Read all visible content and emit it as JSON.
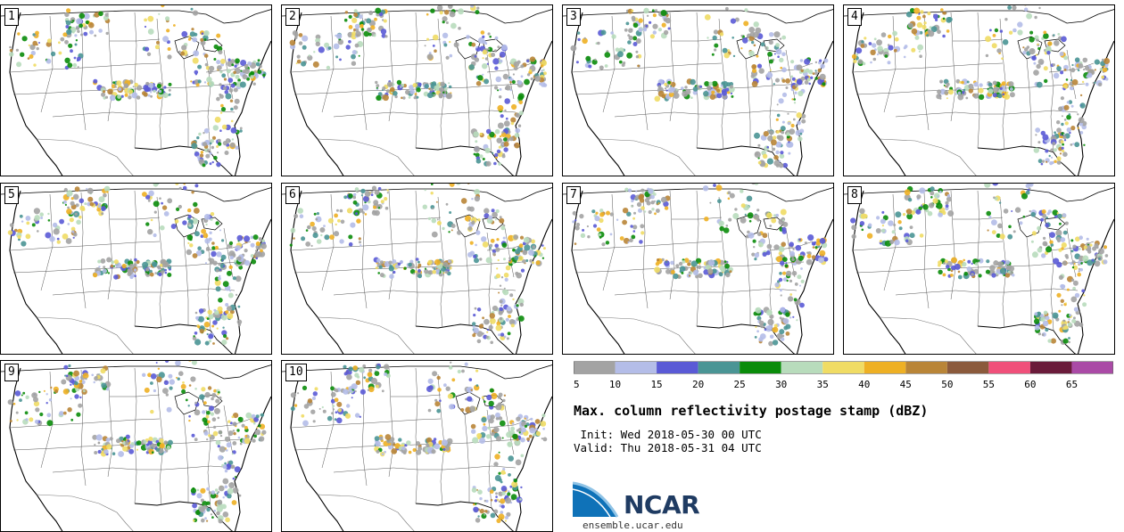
{
  "panels": [
    {
      "label": "1"
    },
    {
      "label": "2"
    },
    {
      "label": "3"
    },
    {
      "label": "4"
    },
    {
      "label": "5"
    },
    {
      "label": "6"
    },
    {
      "label": "7"
    },
    {
      "label": "8"
    },
    {
      "label": "9"
    },
    {
      "label": "10"
    }
  ],
  "colorbar": {
    "colors": [
      "#a3a3a3",
      "#b4bde8",
      "#5a5ad6",
      "#4a9595",
      "#0a8c0a",
      "#b8dcbc",
      "#f0dc64",
      "#eeb024",
      "#b98537",
      "#8b5a3c",
      "#f0507a",
      "#6a1b3a",
      "#aa4aa6"
    ],
    "tick_labels": [
      "5",
      "10",
      "15",
      "20",
      "25",
      "30",
      "35",
      "40",
      "45",
      "50",
      "55",
      "60",
      "65"
    ]
  },
  "title": "Max. column reflectivity postage stamp (dBZ)",
  "init": " Init: Wed 2018-05-30 00 UTC",
  "valid": "Valid: Thu 2018-05-31 04 UTC",
  "logo": {
    "text": "NCAR",
    "url": "ensemble.ucar.edu"
  }
}
